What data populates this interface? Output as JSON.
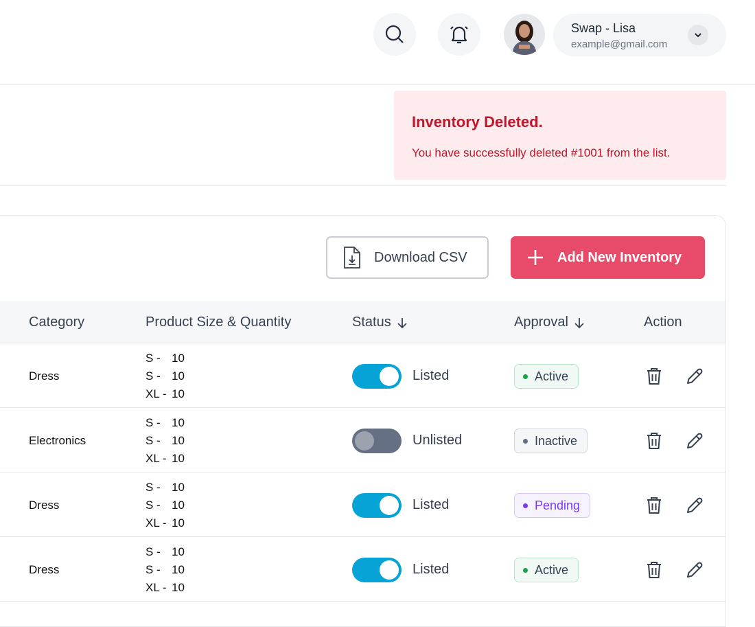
{
  "header": {
    "user_name": "Swap - Lisa",
    "user_email": "example@gmail.com"
  },
  "toast": {
    "title": "Inventory Deleted.",
    "message": "You have successfully deleted #1001 from the list."
  },
  "toolbar": {
    "download": "Download CSV",
    "add": "Add New Inventory"
  },
  "table": {
    "columns": [
      "Category",
      "Product Size & Quantity",
      "Status",
      "Approval",
      "Action"
    ],
    "rows": [
      {
        "category": "Dress",
        "sizes": [
          {
            "size": "S -",
            "qty": 10
          },
          {
            "size": "S -",
            "qty": 10
          },
          {
            "size": "XL -",
            "qty": 10
          }
        ],
        "listed": true,
        "status": "Listed",
        "approval": "Active",
        "approval_color": "#16a34a"
      },
      {
        "category": "Electronics",
        "sizes": [
          {
            "size": "S -",
            "qty": 10
          },
          {
            "size": "S -",
            "qty": 10
          },
          {
            "size": "XL -",
            "qty": 10
          }
        ],
        "listed": false,
        "status": "Unlisted",
        "approval": "Inactive",
        "approval_color": "#667085"
      },
      {
        "category": "Dress",
        "sizes": [
          {
            "size": "S -",
            "qty": 10
          },
          {
            "size": "S -",
            "qty": 10
          },
          {
            "size": "XL -",
            "qty": 10
          }
        ],
        "listed": true,
        "status": "Listed",
        "approval": "Pending",
        "approval_color": "#7c3aed"
      },
      {
        "category": "Dress",
        "sizes": [
          {
            "size": "S -",
            "qty": 10
          },
          {
            "size": "S -",
            "qty": 10
          },
          {
            "size": "XL -",
            "qty": 10
          }
        ],
        "listed": true,
        "status": "Listed",
        "approval": "Active",
        "approval_color": "#16a34a"
      }
    ]
  }
}
